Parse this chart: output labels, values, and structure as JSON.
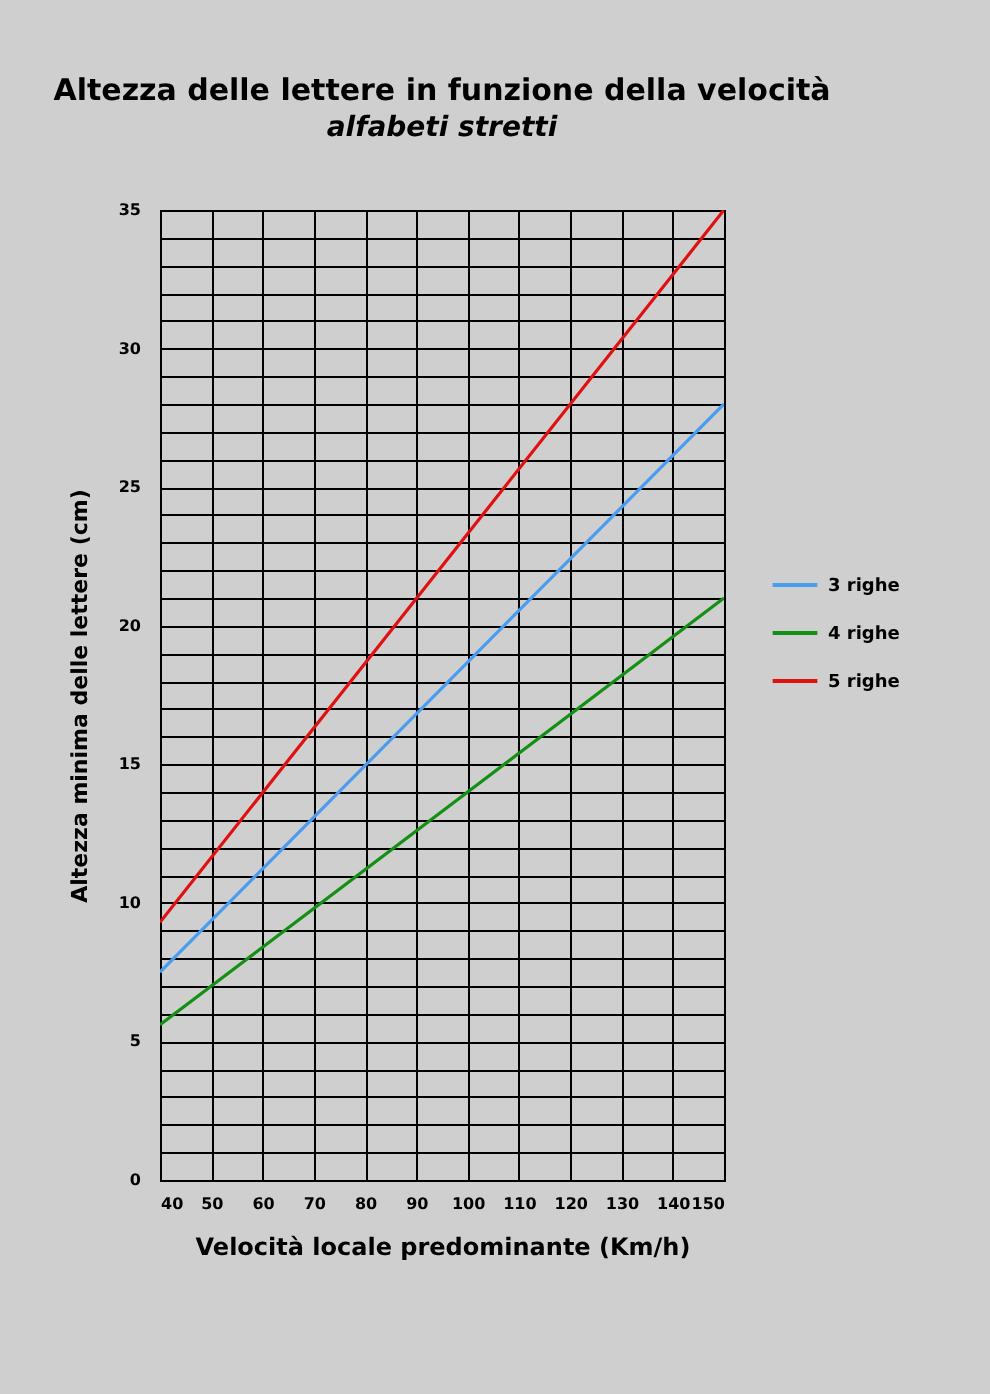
{
  "chart_data": {
    "type": "line",
    "title": "Altezza delle lettere in funzione della velocità",
    "subtitle": "alfabeti stretti",
    "xlabel": "Velocità locale predominante (Km/h)",
    "ylabel": "Altezza minima delle lettere (cm)",
    "x": [
      40,
      150
    ],
    "series": [
      {
        "name": "3 righe",
        "color": "#4a9cf0",
        "values": [
          7.5,
          28
        ]
      },
      {
        "name": "4 righe",
        "color": "#139013",
        "values": [
          5.6,
          21
        ]
      },
      {
        "name": "5 righe",
        "color": "#e01010",
        "values": [
          9.3,
          35
        ]
      }
    ],
    "xlim": [
      40,
      150
    ],
    "xticks": [
      40,
      50,
      60,
      70,
      80,
      90,
      100,
      110,
      120,
      130,
      140,
      150
    ],
    "ylim": [
      0,
      35
    ],
    "yticks": [
      0,
      {
        "value": 1,
        "label": null
      },
      {
        "value": 2,
        "label": null
      },
      {
        "value": 3,
        "label": null
      },
      {
        "value": 4,
        "label": null
      },
      5,
      {
        "value": 6,
        "label": null
      },
      {
        "value": 7,
        "label": null
      },
      {
        "value": 8,
        "label": null
      },
      {
        "value": 9,
        "label": null
      },
      10,
      {
        "value": 11,
        "label": null
      },
      {
        "value": 12,
        "label": null
      },
      {
        "value": 13,
        "label": null
      },
      {
        "value": 14,
        "label": null
      },
      15,
      {
        "value": 16,
        "label": null
      },
      {
        "value": 17,
        "label": null
      },
      {
        "value": 18,
        "label": null
      },
      {
        "value": 19,
        "label": null
      },
      20,
      {
        "value": 21,
        "label": null
      },
      {
        "value": 22,
        "label": null
      },
      {
        "value": 23,
        "label": null
      },
      {
        "value": 24,
        "label": null
      },
      25,
      {
        "value": 26,
        "label": null
      },
      {
        "value": 27,
        "label": null
      },
      {
        "value": 28,
        "label": null
      },
      {
        "value": 29,
        "label": null
      },
      30,
      {
        "value": 31,
        "label": null
      },
      {
        "value": 32,
        "label": null
      },
      {
        "value": 33,
        "label": null
      },
      {
        "value": 34,
        "label": null
      },
      35
    ],
    "grid": true,
    "legend": "right",
    "line_style": "solid",
    "marker": "none"
  }
}
